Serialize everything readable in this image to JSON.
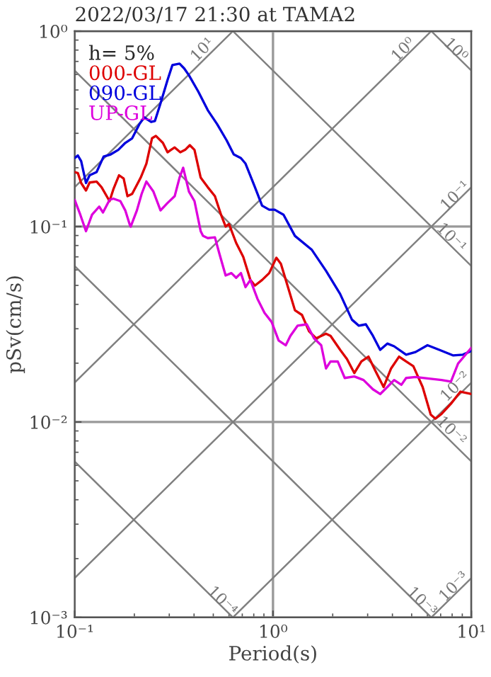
{
  "chart_data": {
    "type": "line",
    "title": "2022/03/17 21:30 at TAMA2",
    "xlabel": "Period(s)",
    "ylabel": "pSv(cm/s)",
    "legend_title": "h= 5%",
    "legend": "top left",
    "log": "xy",
    "grid": true,
    "xlim": [
      0.1,
      10
    ],
    "xticks": [
      {
        "value": 0.1,
        "label": "10⁻¹"
      },
      {
        "value": 1,
        "label": "10⁰"
      },
      {
        "value": 10,
        "label": "10¹"
      }
    ],
    "ylim": [
      0.001,
      1
    ],
    "yticks": [
      {
        "value": 0.001,
        "label": "10⁻³"
      },
      {
        "value": 0.01,
        "label": "10⁻²"
      },
      {
        "value": 0.1,
        "label": "10⁻¹"
      },
      {
        "value": 1,
        "label": "10⁰"
      }
    ],
    "series": [
      {
        "name": "000-GL",
        "color": "#dd0000",
        "x": [
          0.1,
          0.1038,
          0.1079,
          0.1141,
          0.119,
          0.129,
          0.1367,
          0.15,
          0.1567,
          0.1674,
          0.1767,
          0.1847,
          0.195,
          0.2153,
          0.23,
          0.2455,
          0.2567,
          0.2786,
          0.294,
          0.306,
          0.3194,
          0.341,
          0.3607,
          0.3808,
          0.402,
          0.432,
          0.469,
          0.5096,
          0.547,
          0.577,
          0.6,
          0.652,
          0.708,
          0.769,
          0.811,
          0.881,
          0.957,
          1.04,
          1.096,
          1.19,
          1.29,
          1.4,
          1.52,
          1.65,
          1.85,
          1.95,
          2.18,
          2.36,
          2.57,
          2.79,
          3.03,
          3.28,
          3.61,
          3.94,
          4.32,
          4.69,
          5.1,
          5.68,
          6.24,
          6.59,
          7.08,
          7.89,
          8.81,
          10
        ],
        "values": [
          0.19,
          0.188,
          0.167,
          0.153,
          0.168,
          0.17,
          0.159,
          0.135,
          0.155,
          0.183,
          0.176,
          0.143,
          0.147,
          0.178,
          0.21,
          0.283,
          0.291,
          0.268,
          0.24,
          0.247,
          0.254,
          0.24,
          0.247,
          0.261,
          0.247,
          0.178,
          0.159,
          0.143,
          0.115,
          0.1,
          0.103,
          0.0825,
          0.07,
          0.0533,
          0.0499,
          0.0533,
          0.0578,
          0.0693,
          0.0645,
          0.049,
          0.0373,
          0.0353,
          0.0291,
          0.0268,
          0.0283,
          0.0276,
          0.0234,
          0.021,
          0.0178,
          0.0204,
          0.0216,
          0.0183,
          0.0151,
          0.0188,
          0.0216,
          0.0204,
          0.0193,
          0.0151,
          0.0109,
          0.0104,
          0.011,
          0.0124,
          0.0143,
          0.0139
        ]
      },
      {
        "name": "090-GL",
        "color": "#0000dd",
        "x": [
          0.1,
          0.1038,
          0.1079,
          0.1141,
          0.119,
          0.129,
          0.14,
          0.152,
          0.166,
          0.18,
          0.195,
          0.212,
          0.224,
          0.243,
          0.254,
          0.271,
          0.294,
          0.311,
          0.338,
          0.357,
          0.377,
          0.42,
          0.469,
          0.523,
          0.584,
          0.634,
          0.689,
          0.727,
          0.811,
          0.881,
          0.957,
          1.02,
          1.13,
          1.29,
          1.57,
          1.85,
          2.18,
          2.5,
          2.71,
          2.94,
          3.19,
          3.47,
          3.77,
          4.08,
          4.69,
          5.23,
          6.01,
          6.89,
          8.11,
          9.06,
          10
        ],
        "values": [
          0.224,
          0.231,
          0.216,
          0.167,
          0.183,
          0.19,
          0.228,
          0.234,
          0.247,
          0.268,
          0.283,
          0.334,
          0.362,
          0.343,
          0.347,
          0.427,
          0.562,
          0.67,
          0.682,
          0.644,
          0.594,
          0.491,
          0.394,
          0.334,
          0.276,
          0.234,
          0.224,
          0.21,
          0.159,
          0.128,
          0.122,
          0.122,
          0.115,
          0.0896,
          0.076,
          0.0594,
          0.0452,
          0.0334,
          0.0311,
          0.0316,
          0.0276,
          0.0234,
          0.0252,
          0.0244,
          0.0221,
          0.0228,
          0.0247,
          0.0234,
          0.0219,
          0.0221,
          0.0231
        ]
      },
      {
        "name": "UP-GL",
        "color": "#dd00dd",
        "x": [
          0.1,
          0.1068,
          0.1141,
          0.1224,
          0.133,
          0.139,
          0.15,
          0.1567,
          0.17,
          0.18,
          0.19,
          0.1918,
          0.206,
          0.2177,
          0.23,
          0.2496,
          0.271,
          0.294,
          0.3194,
          0.338,
          0.3525,
          0.377,
          0.402,
          0.432,
          0.4437,
          0.469,
          0.5096,
          0.538,
          0.577,
          0.617,
          0.652,
          0.689,
          0.727,
          0.769,
          0.835,
          0.906,
          0.984,
          1.068,
          1.16,
          1.224,
          1.33,
          1.48,
          1.61,
          1.75,
          1.85,
          1.95,
          2.12,
          2.3,
          2.57,
          2.86,
          3.19,
          3.47,
          3.77,
          4.08,
          4.44,
          4.69,
          5.23,
          6.01,
          7.08,
          7.89,
          8.57,
          10
        ],
        "values": [
          0.137,
          0.115,
          0.0947,
          0.115,
          0.1265,
          0.118,
          0.137,
          0.139,
          0.135,
          0.121,
          0.1017,
          0.1,
          0.121,
          0.147,
          0.17,
          0.151,
          0.121,
          0.132,
          0.143,
          0.178,
          0.2,
          0.151,
          0.135,
          0.0947,
          0.0896,
          0.0873,
          0.0881,
          0.072,
          0.0562,
          0.0578,
          0.0547,
          0.0578,
          0.049,
          0.0533,
          0.0427,
          0.0362,
          0.0325,
          0.0261,
          0.0247,
          0.0276,
          0.0311,
          0.0316,
          0.0268,
          0.0247,
          0.0188,
          0.0204,
          0.0204,
          0.0168,
          0.0171,
          0.0164,
          0.0147,
          0.0139,
          0.0151,
          0.0164,
          0.0155,
          0.0168,
          0.017,
          0.0167,
          0.0164,
          0.0161,
          0.0199,
          0.024
        ]
      },
      {
        "color": "#808080",
        "x": [
          0.1,
          10
        ],
        "values": [
          0.628,
          0.00628
        ]
      },
      {
        "color": "#808080",
        "x": [
          0.628,
          10
        ],
        "values": [
          1,
          0.0628
        ]
      },
      {
        "color": "#808080",
        "x": [
          6.28,
          10
        ],
        "values": [
          1,
          0.628
        ]
      },
      {
        "color": "#808080",
        "x": [
          0.1,
          6.28
        ],
        "values": [
          0.0628,
          0.001
        ]
      },
      {
        "color": "#808080",
        "x": [
          0.1,
          0.628
        ],
        "values": [
          0.00628,
          0.001
        ]
      },
      {
        "color": "#808080",
        "x": [
          0.1,
          0.628
        ],
        "values": [
          0.159,
          1
        ]
      },
      {
        "color": "#808080",
        "x": [
          0.1,
          6.28
        ],
        "values": [
          0.0159,
          1
        ]
      },
      {
        "color": "#808080",
        "x": [
          0.1,
          10
        ],
        "values": [
          0.00159,
          0.159
        ]
      },
      {
        "color": "#808080",
        "x": [
          0.628,
          10
        ],
        "values": [
          0.001,
          0.0159
        ]
      },
      {
        "color": "#808080",
        "x": [
          6.28,
          10
        ],
        "values": [
          0.001,
          0.00159
        ]
      }
    ],
    "annotations": [
      {
        "text": "10¹",
        "x": 0.443,
        "y": 0.8
      },
      {
        "text": "10⁰",
        "x": 4.56,
        "y": 0.8
      },
      {
        "text": "10⁰",
        "x": 8.3,
        "y": 0.8
      },
      {
        "text": "10⁻¹",
        "x": 8.34,
        "y": 0.143
      },
      {
        "text": "10⁻¹",
        "x": 7.89,
        "y": 0.0873
      },
      {
        "text": "10⁻²",
        "x": 8.34,
        "y": 0.0151
      },
      {
        "text": "10⁻²",
        "x": 7.89,
        "y": 0.00896
      },
      {
        "text": "10⁻³",
        "x": 8.2,
        "y": 0.00143
      },
      {
        "text": "10⁻³",
        "x": 5.6,
        "y": 0.0012
      },
      {
        "text": "10⁻⁴",
        "x": 0.553,
        "y": 0.00121
      }
    ]
  }
}
